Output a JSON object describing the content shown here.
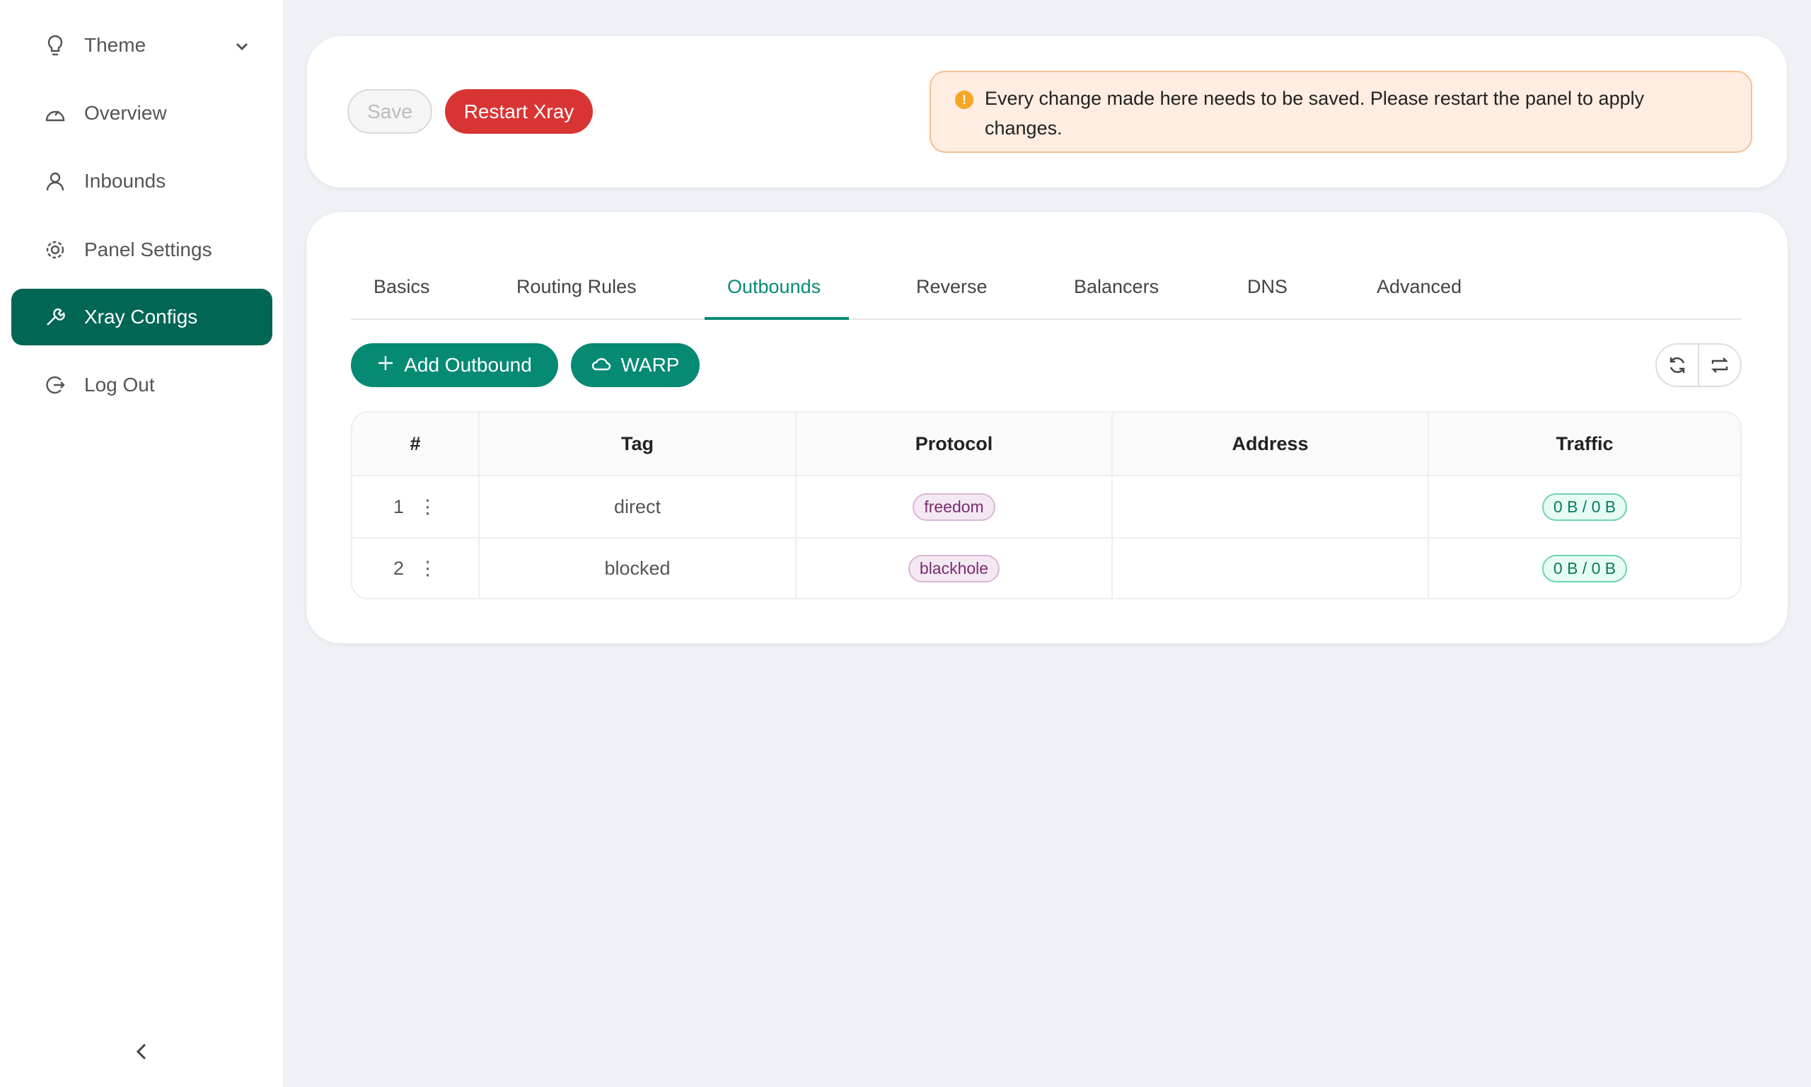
{
  "sidebar": {
    "items": [
      {
        "label": "Theme",
        "icon": "bulb-icon"
      },
      {
        "label": "Overview",
        "icon": "dashboard-icon"
      },
      {
        "label": "Inbounds",
        "icon": "user-icon"
      },
      {
        "label": "Panel Settings",
        "icon": "gear-icon"
      },
      {
        "label": "Xray Configs",
        "icon": "wrench-icon",
        "active": true
      },
      {
        "label": "Log Out",
        "icon": "logout-icon"
      }
    ]
  },
  "toolbar": {
    "save": "Save",
    "restart": "Restart Xray"
  },
  "alert": {
    "text": "Every change made here needs to be saved. Please restart the panel to apply changes."
  },
  "tabs": [
    "Basics",
    "Routing Rules",
    "Outbounds",
    "Reverse",
    "Balancers",
    "DNS",
    "Advanced"
  ],
  "active_tab": "Outbounds",
  "actions": {
    "add": "Add Outbound",
    "warp": "WARP"
  },
  "table": {
    "headers": [
      "#",
      "Tag",
      "Protocol",
      "Address",
      "Traffic"
    ],
    "rows": [
      {
        "num": "1",
        "tag": "direct",
        "protocol": "freedom",
        "address": "",
        "traffic": "0 B / 0 B"
      },
      {
        "num": "2",
        "tag": "blocked",
        "protocol": "blackhole",
        "address": "",
        "traffic": "0 B / 0 B"
      }
    ]
  },
  "colors": {
    "primary": "#068a73",
    "sidebar_active": "#026654",
    "danger": "#d93434"
  }
}
